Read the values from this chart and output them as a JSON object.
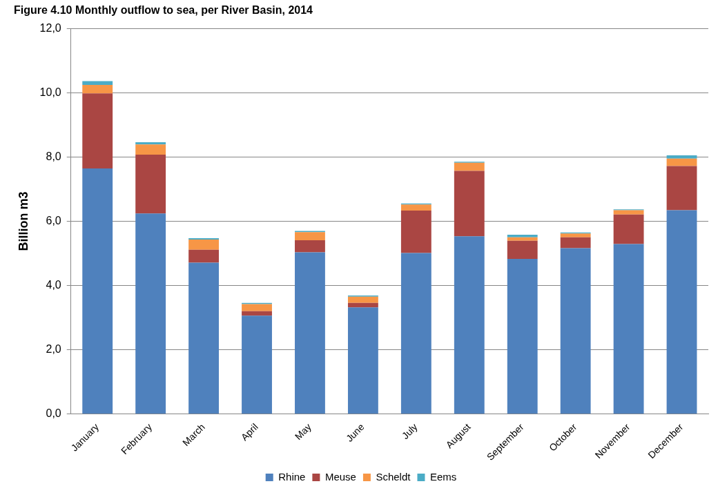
{
  "chart_data": {
    "type": "bar",
    "title": "Figure 4.10 Monthly outflow to sea, per River Basin, 2014",
    "ylabel": "Billion m3",
    "categories": [
      "January",
      "February",
      "March",
      "April",
      "May",
      "June",
      "July",
      "August",
      "September",
      "October",
      "November",
      "December"
    ],
    "stacked": true,
    "series": [
      {
        "name": "Rhine",
        "color": "#4f81bd",
        "values": [
          7.64,
          6.24,
          4.71,
          3.06,
          5.03,
          3.32,
          5.01,
          5.53,
          4.83,
          5.16,
          5.29,
          6.34
        ]
      },
      {
        "name": "Meuse",
        "color": "#aa4643",
        "values": [
          2.34,
          1.83,
          0.4,
          0.14,
          0.38,
          0.14,
          1.32,
          2.04,
          0.56,
          0.34,
          0.92,
          1.38
        ]
      },
      {
        "name": "Scheldt",
        "color": "#f79646",
        "values": [
          0.26,
          0.32,
          0.32,
          0.22,
          0.25,
          0.19,
          0.19,
          0.25,
          0.11,
          0.12,
          0.13,
          0.23
        ]
      },
      {
        "name": "Eems",
        "color": "#4bacc6",
        "values": [
          0.12,
          0.07,
          0.04,
          0.04,
          0.04,
          0.04,
          0.03,
          0.03,
          0.08,
          0.03,
          0.03,
          0.1
        ]
      }
    ],
    "ylim": [
      0,
      12
    ],
    "yticks": [
      {
        "value": 0,
        "label": "0,0"
      },
      {
        "value": 2,
        "label": "2,0"
      },
      {
        "value": 4,
        "label": "4,0"
      },
      {
        "value": 6,
        "label": "6,0"
      },
      {
        "value": 8,
        "label": "8,0"
      },
      {
        "value": 10,
        "label": "10,0"
      },
      {
        "value": 12,
        "label": "12,0"
      }
    ],
    "grid": "y",
    "legend": "bottom"
  }
}
